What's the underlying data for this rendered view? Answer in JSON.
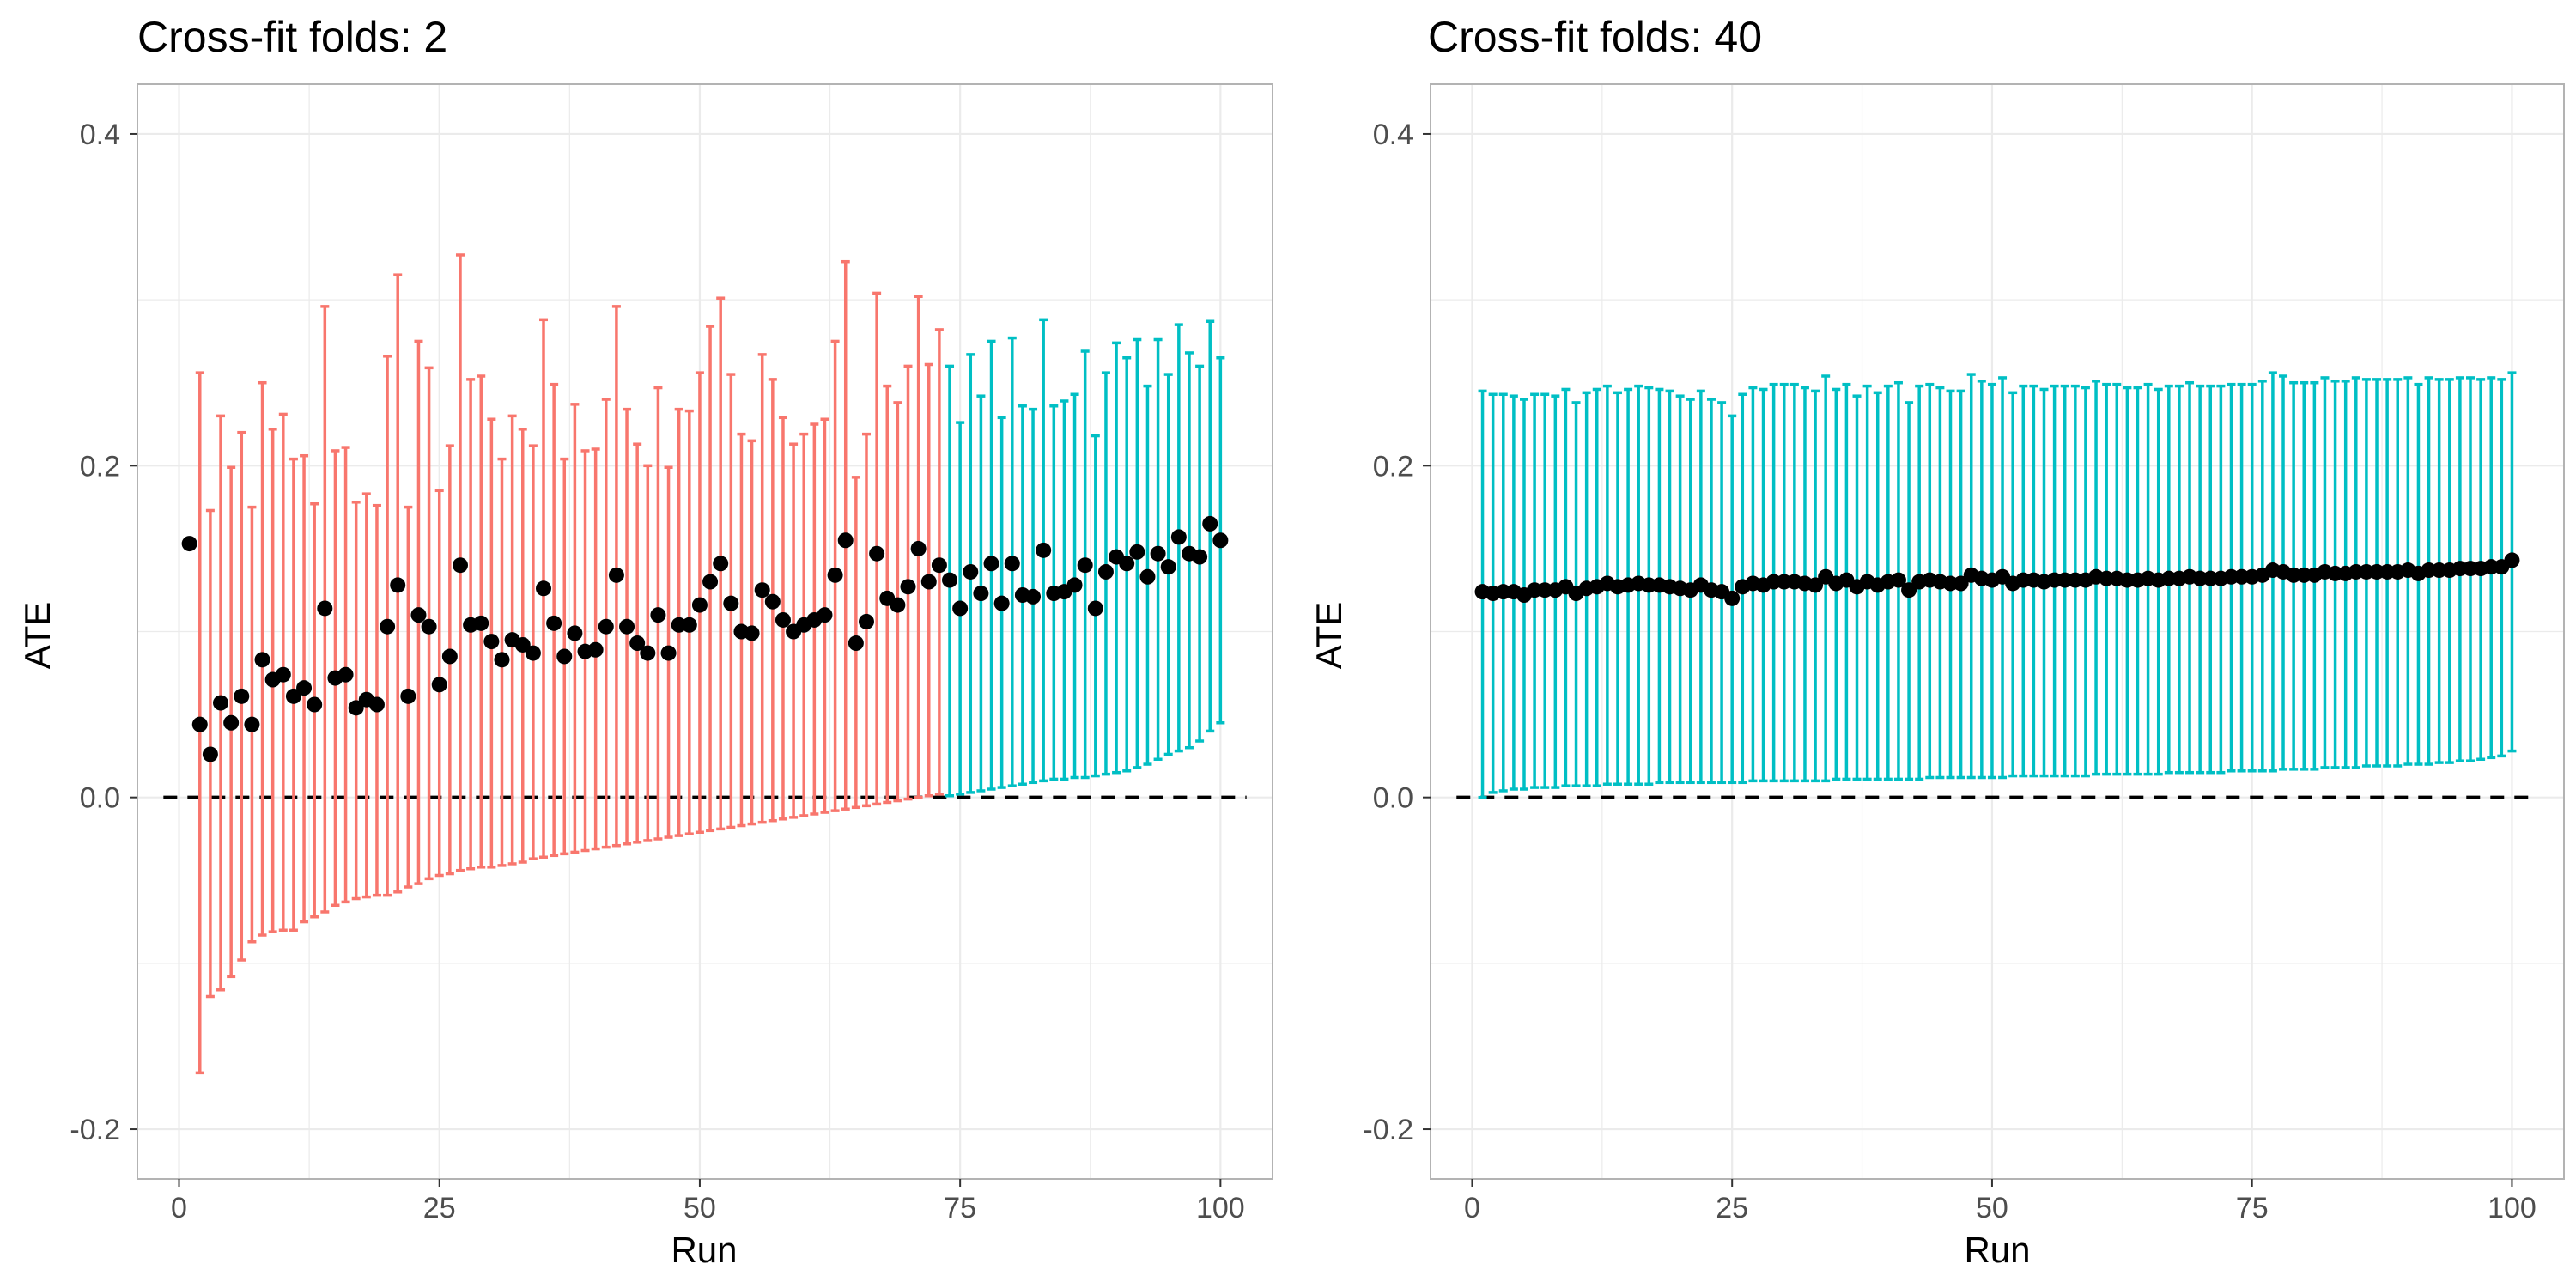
{
  "colors": {
    "not_significant": "#F8766D",
    "significant": "#00BFC4",
    "point": "#000000",
    "grid": "#EBEBEB",
    "zero_line": "#000000"
  },
  "chart_data": [
    {
      "type": "errorbar",
      "title": "Cross-fit folds: 2",
      "xlabel": "Run",
      "ylabel": "ATE",
      "xlim": [
        -4,
        105
      ],
      "ylim": [
        -0.23,
        0.43
      ],
      "x_ticks": [
        0,
        25,
        50,
        75,
        100
      ],
      "x_tick_labels": [
        "0",
        "25",
        "50",
        "75",
        "100"
      ],
      "y_ticks": [
        -0.2,
        0.0,
        0.2,
        0.4
      ],
      "y_tick_labels": [
        "-0.2",
        "0.0",
        "0.2",
        "0.4"
      ],
      "hline": 0,
      "grid": true,
      "legend": "none",
      "runs": [
        1,
        2,
        3,
        4,
        5,
        6,
        7,
        8,
        9,
        10,
        11,
        12,
        13,
        14,
        15,
        16,
        17,
        18,
        19,
        20,
        21,
        22,
        23,
        24,
        25,
        26,
        27,
        28,
        29,
        30,
        31,
        32,
        33,
        34,
        35,
        36,
        37,
        38,
        39,
        40,
        41,
        42,
        43,
        44,
        45,
        46,
        47,
        48,
        49,
        50,
        51,
        52,
        53,
        54,
        55,
        56,
        57,
        58,
        59,
        60,
        61,
        62,
        63,
        64,
        65,
        66,
        67,
        68,
        69,
        70,
        71,
        72,
        73,
        74,
        75,
        76,
        77,
        78,
        79,
        80,
        81,
        82,
        83,
        84,
        85,
        86,
        87,
        88,
        89,
        90,
        91,
        92,
        93,
        94,
        95,
        96,
        97,
        98,
        99,
        100
      ],
      "estimates": [
        0.153,
        0.044,
        0.026,
        0.057,
        0.045,
        0.061,
        0.044,
        0.083,
        0.071,
        0.074,
        0.061,
        0.066,
        0.056,
        0.114,
        0.072,
        0.074,
        0.054,
        0.059,
        0.056,
        0.103,
        0.128,
        0.061,
        0.11,
        0.103,
        0.068,
        0.085,
        0.14,
        0.104,
        0.105,
        0.094,
        0.083,
        0.095,
        0.092,
        0.087,
        0.126,
        0.105,
        0.085,
        0.099,
        0.088,
        0.089,
        0.103,
        0.134,
        0.103,
        0.093,
        0.087,
        0.11,
        0.087,
        0.104,
        0.104,
        0.116,
        0.13,
        0.141,
        0.117,
        0.1,
        0.099,
        0.125,
        0.118,
        0.107,
        0.1,
        0.104,
        0.107,
        0.11,
        0.134,
        0.155,
        0.093,
        0.106,
        0.147,
        0.12,
        0.116,
        0.127,
        0.15,
        0.13,
        0.14,
        0.131,
        0.114,
        0.136,
        0.123,
        0.141,
        0.117,
        0.141,
        0.122,
        0.121,
        0.149,
        0.123,
        0.124,
        0.128,
        0.14,
        0.114,
        0.136,
        0.145,
        0.141,
        0.148,
        0.133,
        0.147,
        0.139,
        0.157,
        0.147,
        0.145,
        0.165,
        0.155
      ],
      "lower": [
        null,
        -0.166,
        -0.12,
        -0.116,
        -0.108,
        -0.098,
        -0.087,
        -0.083,
        -0.081,
        -0.08,
        -0.08,
        -0.075,
        -0.072,
        -0.069,
        -0.065,
        -0.063,
        -0.061,
        -0.06,
        -0.059,
        -0.059,
        -0.057,
        -0.054,
        -0.052,
        -0.049,
        -0.047,
        -0.046,
        -0.044,
        -0.043,
        -0.042,
        -0.042,
        -0.041,
        -0.04,
        -0.039,
        -0.037,
        -0.036,
        -0.035,
        -0.034,
        -0.033,
        -0.032,
        -0.031,
        -0.03,
        -0.029,
        -0.028,
        -0.027,
        -0.026,
        -0.025,
        -0.024,
        -0.023,
        -0.022,
        -0.021,
        -0.02,
        -0.019,
        -0.018,
        -0.017,
        -0.016,
        -0.015,
        -0.014,
        -0.013,
        -0.012,
        -0.011,
        -0.01,
        -0.009,
        -0.008,
        -0.007,
        -0.006,
        -0.005,
        -0.004,
        -0.003,
        -0.002,
        -0.001,
        0.0,
        0.001,
        0.002,
        0.001,
        0.002,
        0.003,
        0.004,
        0.005,
        0.006,
        0.007,
        0.008,
        0.009,
        0.01,
        0.011,
        0.011,
        0.012,
        0.012,
        0.013,
        0.014,
        0.015,
        0.016,
        0.018,
        0.02,
        0.023,
        0.026,
        0.028,
        0.03,
        0.034,
        0.04,
        0.045
      ],
      "upper": [
        null,
        0.256,
        0.173,
        0.23,
        0.199,
        0.22,
        0.175,
        0.25,
        0.222,
        0.231,
        0.204,
        0.206,
        0.177,
        0.296,
        0.209,
        0.211,
        0.178,
        0.183,
        0.176,
        0.266,
        0.315,
        0.175,
        0.275,
        0.259,
        0.185,
        0.212,
        0.327,
        0.252,
        0.254,
        0.228,
        0.204,
        0.23,
        0.222,
        0.212,
        0.288,
        0.249,
        0.204,
        0.237,
        0.209,
        0.21,
        0.24,
        0.296,
        0.234,
        0.213,
        0.2,
        0.247,
        0.199,
        0.234,
        0.233,
        0.256,
        0.284,
        0.301,
        0.255,
        0.219,
        0.215,
        0.267,
        0.252,
        0.229,
        0.213,
        0.219,
        0.225,
        0.228,
        0.275,
        0.323,
        0.193,
        0.219,
        0.304,
        0.248,
        0.238,
        0.26,
        0.302,
        0.261,
        0.282,
        0.26,
        0.226,
        0.267,
        0.242,
        0.275,
        0.229,
        0.277,
        0.236,
        0.234,
        0.288,
        0.236,
        0.239,
        0.243,
        0.269,
        0.218,
        0.256,
        0.274,
        0.265,
        0.276,
        0.248,
        0.276,
        0.255,
        0.285,
        0.268,
        0.26,
        0.287,
        0.265
      ],
      "significant": [
        false,
        false,
        false,
        false,
        false,
        false,
        false,
        false,
        false,
        false,
        false,
        false,
        false,
        false,
        false,
        false,
        false,
        false,
        false,
        false,
        false,
        false,
        false,
        false,
        false,
        false,
        false,
        false,
        false,
        false,
        false,
        false,
        false,
        false,
        false,
        false,
        false,
        false,
        false,
        false,
        false,
        false,
        false,
        false,
        false,
        false,
        false,
        false,
        false,
        false,
        false,
        false,
        false,
        false,
        false,
        false,
        false,
        false,
        false,
        false,
        false,
        false,
        false,
        false,
        false,
        false,
        false,
        false,
        false,
        false,
        false,
        false,
        false,
        true,
        true,
        true,
        true,
        true,
        true,
        true,
        true,
        true,
        true,
        true,
        true,
        true,
        true,
        true,
        true,
        true,
        true,
        true,
        true,
        true,
        true,
        true,
        true,
        true,
        true,
        true,
        true,
        true
      ]
    },
    {
      "type": "errorbar",
      "title": "Cross-fit folds: 40",
      "xlabel": "Run",
      "ylabel": "ATE",
      "xlim": [
        -4,
        105
      ],
      "ylim": [
        -0.23,
        0.43
      ],
      "x_ticks": [
        0,
        25,
        50,
        75,
        100
      ],
      "x_tick_labels": [
        "0",
        "25",
        "50",
        "75",
        "100"
      ],
      "y_ticks": [
        -0.2,
        0.0,
        0.2,
        0.4
      ],
      "y_tick_labels": [
        "-0.2",
        "0.0",
        "0.2",
        "0.4"
      ],
      "hline": 0,
      "grid": true,
      "legend": "none",
      "runs": [
        1,
        2,
        3,
        4,
        5,
        6,
        7,
        8,
        9,
        10,
        11,
        12,
        13,
        14,
        15,
        16,
        17,
        18,
        19,
        20,
        21,
        22,
        23,
        24,
        25,
        26,
        27,
        28,
        29,
        30,
        31,
        32,
        33,
        34,
        35,
        36,
        37,
        38,
        39,
        40,
        41,
        42,
        43,
        44,
        45,
        46,
        47,
        48,
        49,
        50,
        51,
        52,
        53,
        54,
        55,
        56,
        57,
        58,
        59,
        60,
        61,
        62,
        63,
        64,
        65,
        66,
        67,
        68,
        69,
        70,
        71,
        72,
        73,
        74,
        75,
        76,
        77,
        78,
        79,
        80,
        81,
        82,
        83,
        84,
        85,
        86,
        87,
        88,
        89,
        90,
        91,
        92,
        93,
        94,
        95,
        96,
        97,
        98,
        99,
        100
      ],
      "estimates": [
        0.124,
        0.123,
        0.124,
        0.124,
        0.122,
        0.125,
        0.125,
        0.125,
        0.127,
        0.123,
        0.126,
        0.127,
        0.129,
        0.127,
        0.128,
        0.129,
        0.128,
        0.128,
        0.127,
        0.126,
        0.125,
        0.128,
        0.125,
        0.124,
        0.12,
        0.127,
        0.129,
        0.128,
        0.13,
        0.13,
        0.13,
        0.129,
        0.128,
        0.133,
        0.129,
        0.131,
        0.127,
        0.13,
        0.128,
        0.13,
        0.131,
        0.125,
        0.13,
        0.131,
        0.13,
        0.129,
        0.129,
        0.134,
        0.132,
        0.131,
        0.133,
        0.129,
        0.131,
        0.131,
        0.13,
        0.131,
        0.131,
        0.131,
        0.131,
        0.133,
        0.132,
        0.132,
        0.131,
        0.131,
        0.132,
        0.131,
        0.132,
        0.132,
        0.133,
        0.132,
        0.132,
        0.132,
        0.133,
        0.133,
        0.133,
        0.134,
        0.137,
        0.136,
        0.134,
        0.134,
        0.134,
        0.136,
        0.135,
        0.135,
        0.136,
        0.136,
        0.136,
        0.136,
        0.136,
        0.137,
        0.135,
        0.137,
        0.137,
        0.137,
        0.138,
        0.138,
        0.138,
        0.139,
        0.139,
        0.143
      ],
      "lower": [
        0.0,
        0.003,
        0.004,
        0.005,
        0.005,
        0.006,
        0.006,
        0.006,
        0.007,
        0.007,
        0.007,
        0.007,
        0.008,
        0.008,
        0.008,
        0.008,
        0.008,
        0.009,
        0.009,
        0.009,
        0.009,
        0.009,
        0.009,
        0.009,
        0.009,
        0.009,
        0.01,
        0.01,
        0.01,
        0.01,
        0.01,
        0.01,
        0.01,
        0.01,
        0.011,
        0.011,
        0.011,
        0.011,
        0.011,
        0.011,
        0.011,
        0.011,
        0.011,
        0.012,
        0.012,
        0.012,
        0.012,
        0.012,
        0.012,
        0.012,
        0.012,
        0.013,
        0.013,
        0.013,
        0.013,
        0.013,
        0.013,
        0.013,
        0.013,
        0.014,
        0.014,
        0.014,
        0.014,
        0.014,
        0.014,
        0.014,
        0.015,
        0.015,
        0.015,
        0.015,
        0.015,
        0.015,
        0.016,
        0.016,
        0.016,
        0.016,
        0.016,
        0.017,
        0.017,
        0.017,
        0.017,
        0.018,
        0.018,
        0.018,
        0.018,
        0.019,
        0.019,
        0.019,
        0.019,
        0.02,
        0.02,
        0.02,
        0.021,
        0.021,
        0.022,
        0.022,
        0.023,
        0.024,
        0.025,
        0.028
      ],
      "upper": [
        0.245,
        0.243,
        0.243,
        0.242,
        0.24,
        0.243,
        0.243,
        0.242,
        0.246,
        0.238,
        0.244,
        0.246,
        0.248,
        0.244,
        0.246,
        0.248,
        0.247,
        0.246,
        0.245,
        0.242,
        0.24,
        0.245,
        0.24,
        0.238,
        0.23,
        0.243,
        0.247,
        0.246,
        0.249,
        0.249,
        0.249,
        0.247,
        0.245,
        0.254,
        0.246,
        0.249,
        0.242,
        0.248,
        0.244,
        0.248,
        0.25,
        0.238,
        0.248,
        0.249,
        0.247,
        0.245,
        0.245,
        0.255,
        0.251,
        0.249,
        0.253,
        0.244,
        0.248,
        0.248,
        0.246,
        0.248,
        0.248,
        0.248,
        0.247,
        0.251,
        0.249,
        0.249,
        0.247,
        0.247,
        0.249,
        0.246,
        0.248,
        0.248,
        0.25,
        0.248,
        0.248,
        0.248,
        0.249,
        0.249,
        0.249,
        0.251,
        0.256,
        0.254,
        0.25,
        0.25,
        0.25,
        0.253,
        0.251,
        0.251,
        0.253,
        0.252,
        0.252,
        0.252,
        0.252,
        0.253,
        0.249,
        0.253,
        0.252,
        0.252,
        0.253,
        0.253,
        0.252,
        0.253,
        0.252,
        0.256
      ],
      "significant": [
        true,
        true,
        true,
        true,
        true,
        true,
        true,
        true,
        true,
        true,
        true,
        true,
        true,
        true,
        true,
        true,
        true,
        true,
        true,
        true,
        true,
        true,
        true,
        true,
        true,
        true,
        true,
        true,
        true,
        true,
        true,
        true,
        true,
        true,
        true,
        true,
        true,
        true,
        true,
        true,
        true,
        true,
        true,
        true,
        true,
        true,
        true,
        true,
        true,
        true,
        true,
        true,
        true,
        true,
        true,
        true,
        true,
        true,
        true,
        true,
        true,
        true,
        true,
        true,
        true,
        true,
        true,
        true,
        true,
        true,
        true,
        true,
        true,
        true,
        true,
        true,
        true,
        true,
        true,
        true,
        true,
        true,
        true,
        true,
        true,
        true,
        true,
        true,
        true,
        true,
        true,
        true,
        true,
        true,
        true,
        true,
        true,
        true,
        true,
        true
      ]
    }
  ]
}
